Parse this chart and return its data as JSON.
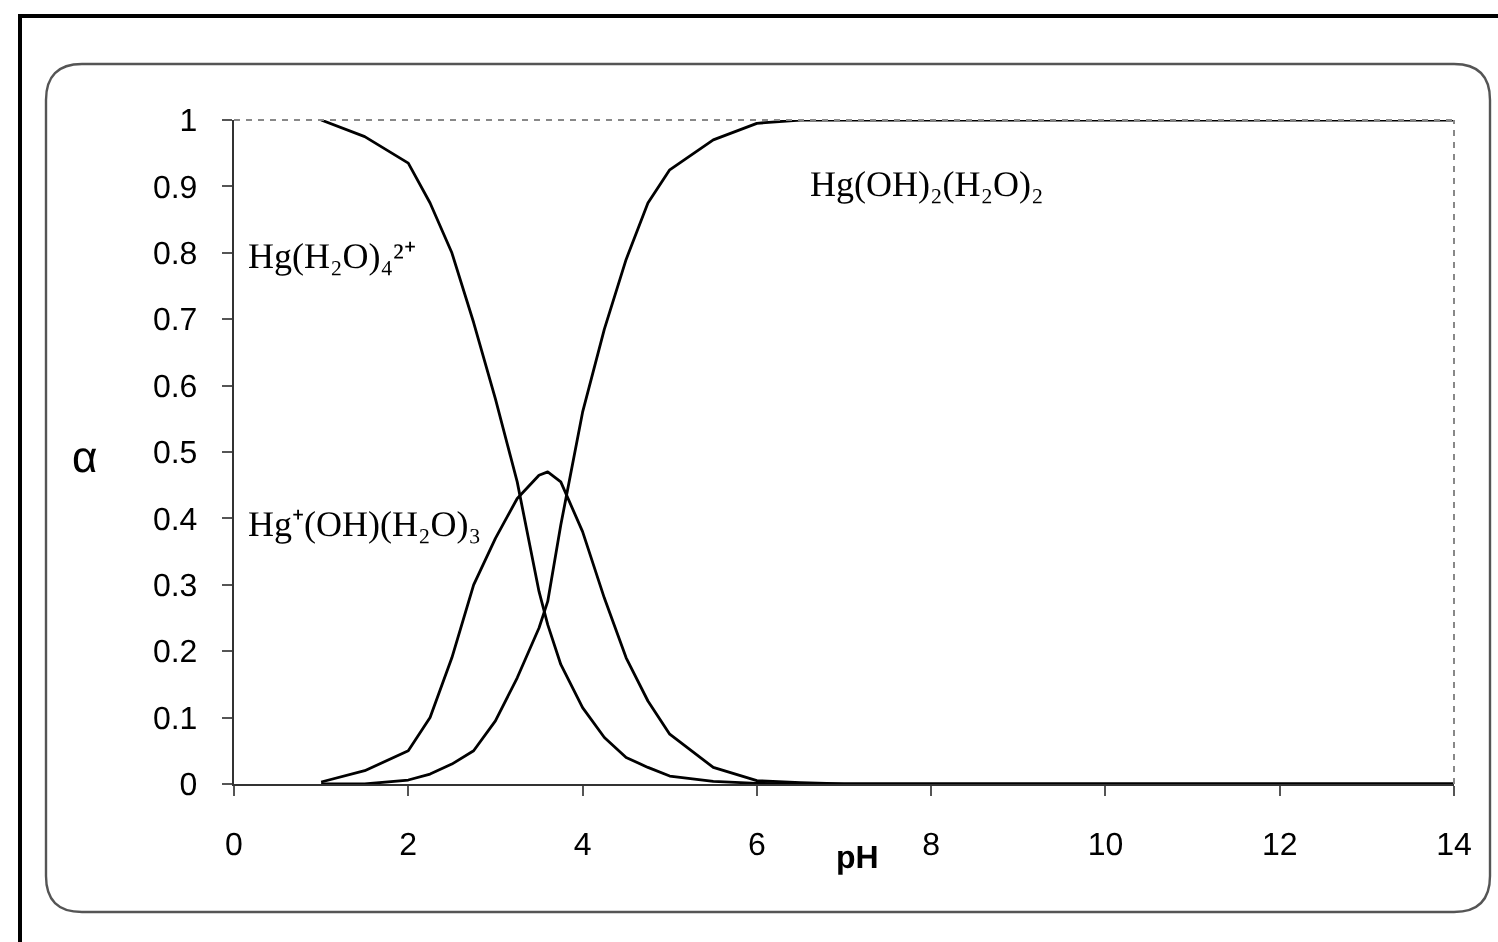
{
  "chart_data": {
    "type": "line",
    "xlabel": "pH",
    "ylabel": "α",
    "x": [
      1,
      1.5,
      2,
      2.25,
      2.5,
      2.75,
      3,
      3.25,
      3.5,
      3.6,
      3.75,
      4,
      4.25,
      4.5,
      4.75,
      5,
      5.5,
      6,
      6.5,
      7,
      14
    ],
    "series": [
      {
        "name": "Hg(H₂O)₄²⁺",
        "color": "#000000",
        "values": [
          1,
          0.975,
          0.935,
          0.875,
          0.8,
          0.695,
          0.58,
          0.455,
          0.29,
          0.24,
          0.18,
          0.115,
          0.07,
          0.04,
          0.025,
          0.012,
          0.004,
          0.001,
          0,
          0,
          0
        ]
      },
      {
        "name": "Hg⁺(OH)(H₂O)₃",
        "color": "#000000",
        "values": [
          0.003,
          0.02,
          0.05,
          0.1,
          0.19,
          0.3,
          0.37,
          0.43,
          0.465,
          0.47,
          0.455,
          0.38,
          0.28,
          0.19,
          0.125,
          0.075,
          0.025,
          0.005,
          0.002,
          0,
          0
        ]
      },
      {
        "name": "Hg(OH)₂(H₂O)₂",
        "color": "#000000",
        "values": [
          0,
          0,
          0.006,
          0.015,
          0.03,
          0.05,
          0.095,
          0.16,
          0.235,
          0.275,
          0.39,
          0.56,
          0.685,
          0.79,
          0.875,
          0.925,
          0.97,
          0.995,
          1,
          1,
          1
        ]
      }
    ],
    "xlim": [
      0,
      14
    ],
    "ylim": [
      0,
      1
    ],
    "xticks": [
      0,
      2,
      4,
      6,
      8,
      10,
      12,
      14
    ],
    "yticks": [
      0,
      0.1,
      0.2,
      0.3,
      0.4,
      0.5,
      0.6,
      0.7,
      0.8,
      0.9,
      1
    ],
    "line_style": "solid"
  }
}
